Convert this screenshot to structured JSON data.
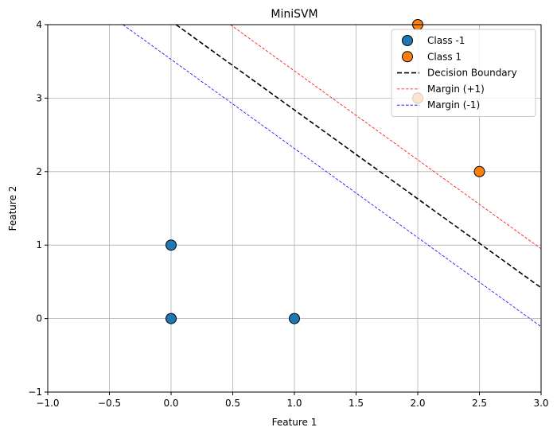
{
  "chart_data": {
    "type": "scatter",
    "title": "MiniSVM",
    "xlabel": "Feature 1",
    "ylabel": "Feature 2",
    "xlim": [
      -1.0,
      3.0
    ],
    "ylim": [
      -1,
      4
    ],
    "xticks": [
      -1.0,
      -0.5,
      0.0,
      0.5,
      1.0,
      1.5,
      2.0,
      2.5,
      3.0
    ],
    "xtick_labels": [
      "−1.0",
      "−0.5",
      "0.0",
      "0.5",
      "1.0",
      "1.5",
      "2.0",
      "2.5",
      "3.0"
    ],
    "yticks": [
      -1,
      0,
      1,
      2,
      3,
      4
    ],
    "ytick_labels": [
      "−1",
      "0",
      "1",
      "2",
      "3",
      "4"
    ],
    "grid": true,
    "legend_position": "top-right",
    "series": [
      {
        "name": "Class -1",
        "kind": "points",
        "color": "#1f77b4",
        "points": [
          [
            0,
            0
          ],
          [
            0,
            1
          ],
          [
            1,
            0
          ]
        ]
      },
      {
        "name": "Class 1",
        "kind": "points",
        "color": "#ff7f0e",
        "points": [
          [
            2,
            3
          ],
          [
            2.5,
            2
          ],
          [
            2,
            4
          ]
        ]
      }
    ],
    "lines": [
      {
        "name": "Decision Boundary",
        "color": "#000000",
        "style": "dashed-thick",
        "points": [
          [
            0.04,
            4.0
          ],
          [
            3.0,
            0.42
          ]
        ]
      },
      {
        "name": "Margin (+1)",
        "color": "#ff0000",
        "style": "dashed-thin",
        "points": [
          [
            0.48,
            4.0
          ],
          [
            3.0,
            0.95
          ]
        ]
      },
      {
        "name": "Margin (-1)",
        "color": "#0000ff",
        "style": "dashed-thin",
        "points": [
          [
            -0.39,
            4.0
          ],
          [
            3.0,
            -0.11
          ]
        ]
      }
    ]
  }
}
